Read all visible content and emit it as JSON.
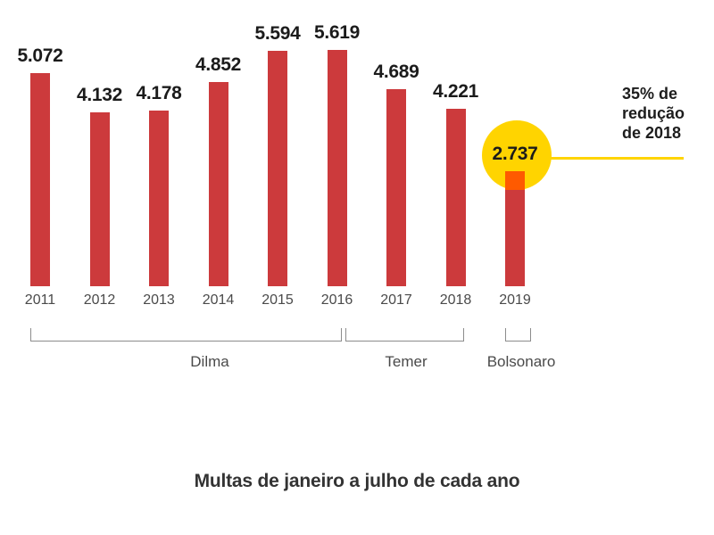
{
  "title": "Multas de janeiro a julho de cada ano",
  "chart_data": {
    "type": "bar",
    "categories": [
      "2011",
      "2012",
      "2013",
      "2014",
      "2015",
      "2016",
      "2017",
      "2018",
      "2019"
    ],
    "values": [
      5072,
      4132,
      4178,
      4852,
      5594,
      5619,
      4689,
      4221,
      2737
    ],
    "value_labels": [
      "5.072",
      "4.132",
      "4.178",
      "4.852",
      "5.594",
      "5.619",
      "4.689",
      "4.221",
      "2.737"
    ],
    "title": "Multas de janeiro a julho de cada ano",
    "xlabel": "",
    "ylabel": "",
    "ylim": [
      0,
      6000
    ],
    "grid": false,
    "legend": false,
    "groups": [
      {
        "label": "Dilma",
        "from": "2011",
        "to": "2016"
      },
      {
        "label": "Temer",
        "from": "2017",
        "to": "2018"
      },
      {
        "label": "Bolsonaro",
        "from": "2019",
        "to": "2019"
      }
    ],
    "highlight": {
      "category": "2019",
      "value_label": "2.737",
      "annotation": "35% de redução de 2018"
    }
  },
  "annotation": {
    "lines": [
      "35% de",
      "redução",
      "de 2018"
    ]
  },
  "colors": {
    "bar": "#cc3a3c",
    "highlight_cap": "#fe5a00",
    "highlight_circle": "#ffd400",
    "connector": "#ffd400",
    "label_text": "#1b1b1b",
    "axis_text": "#4a4a4a",
    "bracket": "#8c8c8c",
    "title_text": "#333333"
  }
}
